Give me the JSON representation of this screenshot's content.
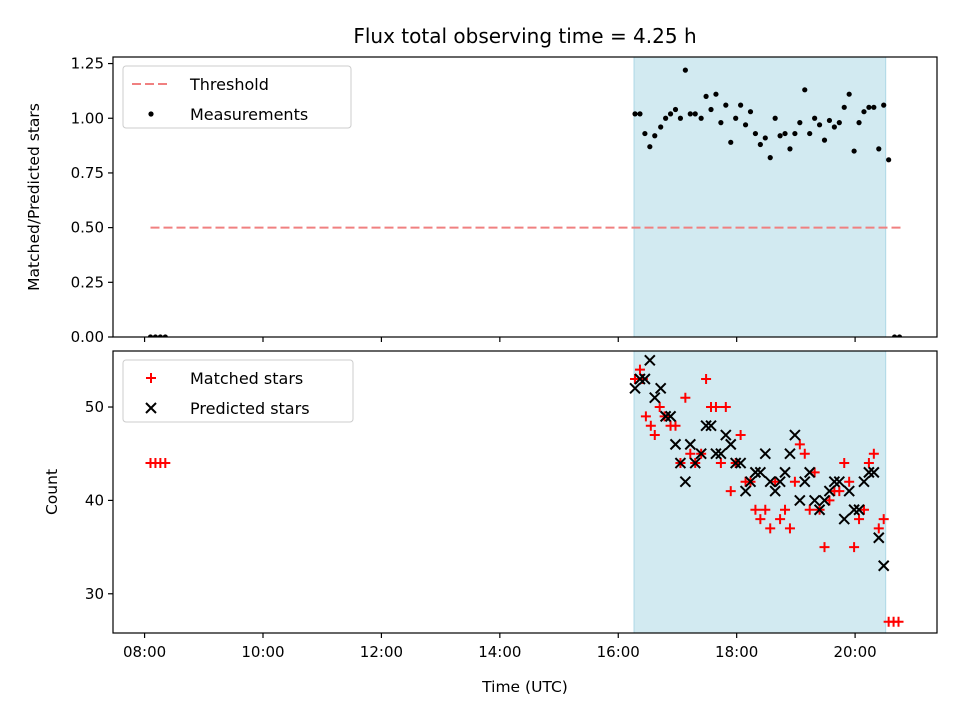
{
  "title": "Flux total observing time = 4.25 h",
  "xlabel": "Time (UTC)",
  "colors": {
    "threshold": "#f08080",
    "measurements": "#000000",
    "matched": "#ff0000",
    "predicted": "#000000",
    "span": "#add8e6"
  },
  "chart_data": [
    {
      "type": "scatter",
      "name": "ratio-panel",
      "ylabel": "Matched/Predicted stars",
      "xlim": [
        "07:28",
        "21:23"
      ],
      "ylim": [
        0,
        1.28
      ],
      "yticks": [
        "0.00",
        "0.25",
        "0.50",
        "0.75",
        "1.00",
        "1.25"
      ],
      "observing_span": [
        "16:16",
        "20:31"
      ],
      "threshold": {
        "label": "Threshold",
        "y": 0.5,
        "x": [
          "08:06",
          "20:48"
        ]
      },
      "legend": [
        "Threshold",
        "Measurements"
      ],
      "legend_position": "upper-left",
      "series": [
        {
          "name": "Measurements",
          "points": [
            [
              "08:06",
              0.0
            ],
            [
              "08:11",
              0.0
            ],
            [
              "08:16",
              0.0
            ],
            [
              "08:21",
              0.0
            ],
            [
              "16:17",
              1.02
            ],
            [
              "16:22",
              1.02
            ],
            [
              "16:27",
              0.93
            ],
            [
              "16:32",
              0.87
            ],
            [
              "16:37",
              0.92
            ],
            [
              "16:43",
              0.96
            ],
            [
              "16:48",
              1.0
            ],
            [
              "16:53",
              1.02
            ],
            [
              "16:58",
              1.04
            ],
            [
              "17:03",
              1.0
            ],
            [
              "17:08",
              1.22
            ],
            [
              "17:13",
              1.02
            ],
            [
              "17:18",
              1.02
            ],
            [
              "17:24",
              1.0
            ],
            [
              "17:29",
              1.1
            ],
            [
              "17:34",
              1.04
            ],
            [
              "17:39",
              1.11
            ],
            [
              "17:44",
              0.98
            ],
            [
              "17:49",
              1.06
            ],
            [
              "17:54",
              0.89
            ],
            [
              "17:59",
              1.0
            ],
            [
              "18:04",
              1.06
            ],
            [
              "18:09",
              0.97
            ],
            [
              "18:14",
              1.03
            ],
            [
              "18:19",
              0.93
            ],
            [
              "18:24",
              0.88
            ],
            [
              "18:29",
              0.91
            ],
            [
              "18:34",
              0.82
            ],
            [
              "18:39",
              1.0
            ],
            [
              "18:44",
              0.92
            ],
            [
              "18:49",
              0.93
            ],
            [
              "18:54",
              0.86
            ],
            [
              "18:59",
              0.93
            ],
            [
              "19:04",
              0.98
            ],
            [
              "19:09",
              1.13
            ],
            [
              "19:14",
              0.93
            ],
            [
              "19:19",
              1.0
            ],
            [
              "19:24",
              0.97
            ],
            [
              "19:29",
              0.9
            ],
            [
              "19:34",
              0.99
            ],
            [
              "19:39",
              0.96
            ],
            [
              "19:44",
              0.98
            ],
            [
              "19:49",
              1.05
            ],
            [
              "19:54",
              1.11
            ],
            [
              "19:59",
              0.85
            ],
            [
              "20:04",
              0.98
            ],
            [
              "20:09",
              1.03
            ],
            [
              "20:14",
              1.05
            ],
            [
              "20:19",
              1.05
            ],
            [
              "20:24",
              0.86
            ],
            [
              "20:29",
              1.06
            ],
            [
              "20:34",
              0.81
            ],
            [
              "20:40",
              0.0
            ],
            [
              "20:45",
              0.0
            ]
          ]
        }
      ]
    },
    {
      "type": "scatter",
      "name": "count-panel",
      "ylabel": "Count",
      "xlim": [
        "07:28",
        "21:23"
      ],
      "ylim": [
        25.8,
        56
      ],
      "yticks": [
        "30",
        "40",
        "50"
      ],
      "xticks": [
        "08:00",
        "10:00",
        "12:00",
        "14:00",
        "16:00",
        "18:00",
        "20:00"
      ],
      "observing_span": [
        "16:16",
        "20:31"
      ],
      "legend": [
        "Matched stars",
        "Predicted stars"
      ],
      "legend_position": "upper-left",
      "series": [
        {
          "name": "Matched stars",
          "marker": "plus",
          "points": [
            [
              "08:06",
              44
            ],
            [
              "08:11",
              44
            ],
            [
              "08:16",
              44
            ],
            [
              "08:21",
              44
            ],
            [
              "16:17",
              53
            ],
            [
              "16:22",
              54
            ],
            [
              "16:25",
              53
            ],
            [
              "16:28",
              49
            ],
            [
              "16:33",
              48
            ],
            [
              "16:37",
              47
            ],
            [
              "16:42",
              50
            ],
            [
              "16:47",
              49
            ],
            [
              "16:53",
              48
            ],
            [
              "16:58",
              48
            ],
            [
              "17:03",
              44
            ],
            [
              "17:08",
              51
            ],
            [
              "17:13",
              45
            ],
            [
              "17:18",
              44
            ],
            [
              "17:24",
              45
            ],
            [
              "17:29",
              53
            ],
            [
              "17:34",
              50
            ],
            [
              "17:39",
              50
            ],
            [
              "17:44",
              44
            ],
            [
              "17:49",
              50
            ],
            [
              "17:54",
              41
            ],
            [
              "17:59",
              44
            ],
            [
              "18:04",
              47
            ],
            [
              "18:09",
              42
            ],
            [
              "18:14",
              42
            ],
            [
              "18:19",
              39
            ],
            [
              "18:24",
              38
            ],
            [
              "18:29",
              39
            ],
            [
              "18:34",
              37
            ],
            [
              "18:39",
              42
            ],
            [
              "18:44",
              38
            ],
            [
              "18:49",
              39
            ],
            [
              "18:54",
              37
            ],
            [
              "18:59",
              42
            ],
            [
              "19:04",
              46
            ],
            [
              "19:09",
              45
            ],
            [
              "19:14",
              39
            ],
            [
              "19:19",
              43
            ],
            [
              "19:24",
              39
            ],
            [
              "19:29",
              35
            ],
            [
              "19:34",
              40
            ],
            [
              "19:39",
              41
            ],
            [
              "19:44",
              41
            ],
            [
              "19:49",
              44
            ],
            [
              "19:54",
              42
            ],
            [
              "19:59",
              35
            ],
            [
              "20:04",
              38
            ],
            [
              "20:09",
              39
            ],
            [
              "20:14",
              44
            ],
            [
              "20:19",
              45
            ],
            [
              "20:24",
              37
            ],
            [
              "20:29",
              38
            ],
            [
              "20:34",
              27
            ],
            [
              "20:39",
              27
            ],
            [
              "20:44",
              27
            ]
          ]
        },
        {
          "name": "Predicted stars",
          "marker": "x",
          "points": [
            [
              "16:17",
              52
            ],
            [
              "16:22",
              53
            ],
            [
              "16:27",
              53
            ],
            [
              "16:32",
              55
            ],
            [
              "16:37",
              51
            ],
            [
              "16:43",
              52
            ],
            [
              "16:48",
              49
            ],
            [
              "16:53",
              49
            ],
            [
              "16:58",
              46
            ],
            [
              "17:03",
              44
            ],
            [
              "17:08",
              42
            ],
            [
              "17:13",
              46
            ],
            [
              "17:18",
              44
            ],
            [
              "17:24",
              45
            ],
            [
              "17:29",
              48
            ],
            [
              "17:34",
              48
            ],
            [
              "17:39",
              45
            ],
            [
              "17:44",
              45
            ],
            [
              "17:49",
              47
            ],
            [
              "17:54",
              46
            ],
            [
              "17:59",
              44
            ],
            [
              "18:04",
              44
            ],
            [
              "18:09",
              41
            ],
            [
              "18:14",
              42
            ],
            [
              "18:19",
              43
            ],
            [
              "18:24",
              43
            ],
            [
              "18:29",
              45
            ],
            [
              "18:34",
              42
            ],
            [
              "18:39",
              41
            ],
            [
              "18:44",
              42
            ],
            [
              "18:49",
              43
            ],
            [
              "18:54",
              45
            ],
            [
              "18:59",
              47
            ],
            [
              "19:04",
              40
            ],
            [
              "19:09",
              42
            ],
            [
              "19:14",
              43
            ],
            [
              "19:19",
              40
            ],
            [
              "19:24",
              39
            ],
            [
              "19:29",
              40
            ],
            [
              "19:34",
              41
            ],
            [
              "19:39",
              42
            ],
            [
              "19:44",
              42
            ],
            [
              "19:49",
              38
            ],
            [
              "19:54",
              41
            ],
            [
              "19:59",
              39
            ],
            [
              "20:04",
              39
            ],
            [
              "20:09",
              42
            ],
            [
              "20:14",
              43
            ],
            [
              "20:19",
              43
            ],
            [
              "20:24",
              36
            ],
            [
              "20:29",
              33
            ]
          ]
        }
      ]
    }
  ]
}
